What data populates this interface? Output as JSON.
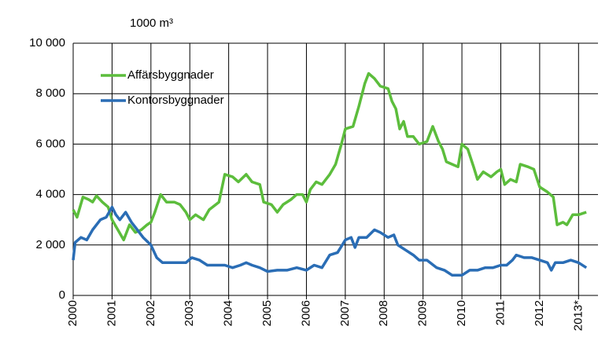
{
  "chart_data": {
    "type": "line",
    "y_unit_label": "1000 m³",
    "xlim": [
      2000,
      2013.5
    ],
    "xticks": [
      2000,
      2001,
      2002,
      2003,
      2004,
      2005,
      2006,
      2007,
      2008,
      2009,
      2010,
      2011,
      2012,
      {
        "value": 2013,
        "label": "2013*"
      }
    ],
    "ylim": [
      0,
      10000
    ],
    "yticks": [
      {
        "value": 0,
        "label": "0"
      },
      {
        "value": 2000,
        "label": "2 000"
      },
      {
        "value": 4000,
        "label": "4 000"
      },
      {
        "value": 6000,
        "label": "6 000"
      },
      {
        "value": 8000,
        "label": "8 000"
      },
      {
        "value": 10000,
        "label": "10 000"
      }
    ],
    "grid": true,
    "legend": "upper left",
    "series": [
      {
        "name": "Affärsbyggnader",
        "color": "#5cbd3c",
        "x": [
          2000.0,
          2000.1,
          2000.25,
          2000.4,
          2000.5,
          2000.6,
          2000.75,
          2000.9,
          2001.0,
          2001.15,
          2001.3,
          2001.45,
          2001.6,
          2001.75,
          2001.9,
          2002.0,
          2002.1,
          2002.25,
          2002.4,
          2002.6,
          2002.75,
          2002.9,
          2003.0,
          2003.15,
          2003.35,
          2003.5,
          2003.75,
          2003.9,
          2004.1,
          2004.25,
          2004.45,
          2004.6,
          2004.8,
          2004.9,
          2005.1,
          2005.25,
          2005.4,
          2005.6,
          2005.75,
          2005.9,
          2006.0,
          2006.1,
          2006.25,
          2006.4,
          2006.6,
          2006.75,
          2006.9,
          2007.0,
          2007.2,
          2007.35,
          2007.5,
          2007.6,
          2007.75,
          2007.9,
          2008.1,
          2008.2,
          2008.3,
          2008.4,
          2008.5,
          2008.6,
          2008.75,
          2008.9,
          2009.1,
          2009.25,
          2009.4,
          2009.5,
          2009.6,
          2009.75,
          2009.9,
          2010.0,
          2010.15,
          2010.3,
          2010.4,
          2010.55,
          2010.75,
          2010.9,
          2011.0,
          2011.1,
          2011.25,
          2011.4,
          2011.5,
          2011.7,
          2011.85,
          2012.0,
          2012.2,
          2012.35,
          2012.45,
          2012.6,
          2012.7,
          2012.85,
          2013.0,
          2013.2
        ],
        "values": [
          3400,
          3100,
          3900,
          3800,
          3700,
          3950,
          3700,
          3500,
          3000,
          2600,
          2200,
          2800,
          2500,
          2600,
          2800,
          2900,
          3300,
          4000,
          3700,
          3700,
          3600,
          3300,
          3000,
          3200,
          3000,
          3400,
          3700,
          4800,
          4700,
          4500,
          4800,
          4500,
          4400,
          3700,
          3600,
          3300,
          3600,
          3800,
          4000,
          4000,
          3700,
          4200,
          4500,
          4400,
          4800,
          5200,
          6000,
          6600,
          6700,
          7500,
          8400,
          8800,
          8600,
          8300,
          8200,
          7700,
          7400,
          6600,
          6900,
          6300,
          6300,
          6000,
          6100,
          6700,
          6100,
          5800,
          5300,
          5200,
          5100,
          6000,
          5800,
          5100,
          4600,
          4900,
          4700,
          4900,
          5000,
          4400,
          4600,
          4500,
          5200,
          5100,
          5000,
          4300,
          4100,
          3900,
          2800,
          2900,
          2800,
          3200,
          3200,
          3300
        ]
      },
      {
        "name": "Kontorsbyggnader",
        "color": "#2a6db5",
        "x": [
          2000.0,
          2000.05,
          2000.2,
          2000.35,
          2000.5,
          2000.7,
          2000.85,
          2001.0,
          2001.1,
          2001.2,
          2001.35,
          2001.5,
          2001.65,
          2001.8,
          2002.0,
          2002.15,
          2002.3,
          2002.5,
          2002.7,
          2002.9,
          2003.05,
          2003.25,
          2003.45,
          2003.7,
          2003.9,
          2004.1,
          2004.3,
          2004.45,
          2004.6,
          2004.8,
          2005.0,
          2005.25,
          2005.5,
          2005.75,
          2006.0,
          2006.2,
          2006.4,
          2006.6,
          2006.8,
          2007.0,
          2007.15,
          2007.25,
          2007.35,
          2007.55,
          2007.75,
          2007.9,
          2008.1,
          2008.25,
          2008.35,
          2008.55,
          2008.75,
          2008.9,
          2009.1,
          2009.35,
          2009.55,
          2009.75,
          2010.0,
          2010.2,
          2010.4,
          2010.6,
          2010.8,
          2011.0,
          2011.15,
          2011.3,
          2011.4,
          2011.6,
          2011.8,
          2012.0,
          2012.2,
          2012.3,
          2012.4,
          2012.6,
          2012.8,
          2013.0,
          2013.2
        ],
        "values": [
          1400,
          2100,
          2300,
          2200,
          2600,
          3000,
          3100,
          3500,
          3200,
          3000,
          3300,
          2900,
          2600,
          2300,
          2000,
          1500,
          1300,
          1300,
          1300,
          1300,
          1500,
          1400,
          1200,
          1200,
          1200,
          1100,
          1200,
          1300,
          1200,
          1100,
          950,
          1000,
          1000,
          1100,
          1000,
          1200,
          1100,
          1600,
          1700,
          2200,
          2300,
          1900,
          2300,
          2300,
          2600,
          2500,
          2300,
          2400,
          2000,
          1800,
          1600,
          1400,
          1400,
          1100,
          1000,
          800,
          800,
          1000,
          1000,
          1100,
          1100,
          1200,
          1200,
          1400,
          1600,
          1500,
          1500,
          1400,
          1300,
          1000,
          1300,
          1300,
          1400,
          1300,
          1100
        ]
      }
    ]
  }
}
